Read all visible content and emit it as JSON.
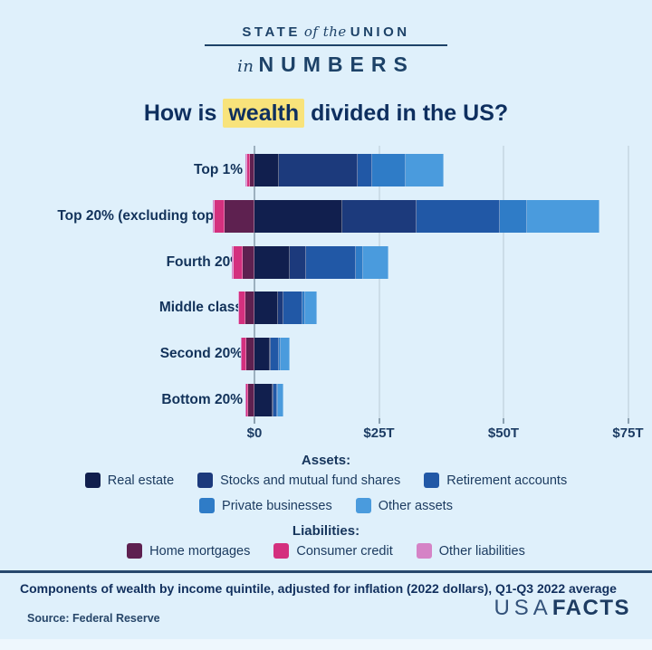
{
  "header": {
    "state": "STATE",
    "of_the": "of the",
    "union": "UNION",
    "in_word": "in",
    "numbers": "NUMBERS"
  },
  "title": {
    "prefix": "How is ",
    "highlight": "wealth",
    "suffix": " divided in the US?",
    "highlight_color": "#f8e37b"
  },
  "legend": {
    "assets_label": "Assets:",
    "liabilities_label": "Liabilities:"
  },
  "footer": {
    "note": "Components of wealth by income quintile, adjusted for inflation (2022 dollars), Q1-Q3 2022 average",
    "source": "Source: Federal Reserve",
    "logo_usa": "USA",
    "logo_facts": "FACTS"
  },
  "colors": {
    "background": "#dff0fb",
    "navy_text": "#12325a",
    "gridline": "#ccdde8",
    "zero_line": "#9cb0bf",
    "highlight_yellow": "#f8e37b"
  },
  "chart_data": {
    "type": "bar",
    "orientation": "horizontal",
    "stacked": true,
    "title": "How is wealth divided in the US?",
    "xlabel": "",
    "ylabel": "",
    "unit": "trillions of dollars",
    "grid": true,
    "legend_position": "bottom",
    "x_ticks": [
      "$0",
      "$25T",
      "$50T",
      "$75T"
    ],
    "x_tick_values": [
      0,
      25,
      50,
      75
    ],
    "xlim": [
      -10,
      78
    ],
    "categories": [
      "Top 1%",
      "Top 20% (excluding top 1%)",
      "Fourth 20%",
      "Middle class",
      "Second 20%",
      "Bottom 20%"
    ],
    "asset_series": [
      {
        "name": "Real estate",
        "color": "#111f4e",
        "values": [
          4.9,
          17.6,
          7.1,
          4.7,
          3.0,
          3.6
        ]
      },
      {
        "name": "Stocks and mutual fund shares",
        "color": "#1c3a7c",
        "values": [
          15.8,
          14.9,
          3.3,
          1.2,
          0.3,
          0.2
        ]
      },
      {
        "name": "Retirement accounts",
        "color": "#2158a6",
        "values": [
          3.0,
          16.7,
          10.0,
          3.8,
          1.6,
          0.7
        ]
      },
      {
        "name": "Private businesses",
        "color": "#2f7cc7",
        "values": [
          6.7,
          5.6,
          1.5,
          0.5,
          0.3,
          0.3
        ]
      },
      {
        "name": "Other assets",
        "color": "#4a9bdd",
        "values": [
          7.6,
          14.4,
          5.0,
          2.3,
          1.9,
          1.0
        ]
      }
    ],
    "liability_series": [
      {
        "name": "Home mortgages",
        "color": "#5e2150",
        "values": [
          1.0,
          6.0,
          2.4,
          1.8,
          1.6,
          1.2
        ]
      },
      {
        "name": "Consumer credit",
        "color": "#d4307e",
        "values": [
          0.5,
          2.0,
          1.8,
          1.3,
          1.1,
          0.6
        ]
      },
      {
        "name": "Other liabilities",
        "color": "#d583c6",
        "values": [
          0.3,
          0.4,
          0.3,
          0.2,
          0.1,
          0.1
        ]
      }
    ]
  }
}
